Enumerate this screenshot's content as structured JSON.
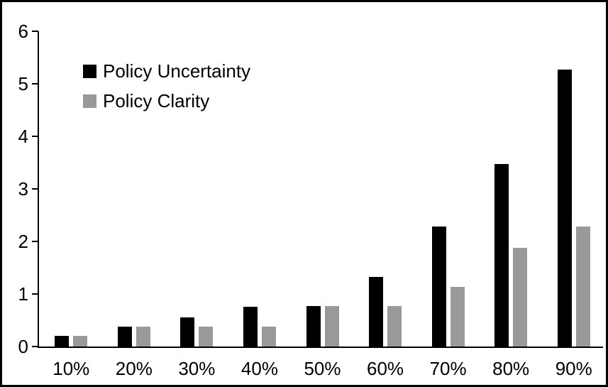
{
  "chart_data": {
    "type": "bar",
    "categories": [
      "10%",
      "20%",
      "30%",
      "40%",
      "50%",
      "60%",
      "70%",
      "80%",
      "90%"
    ],
    "series": [
      {
        "name": "Policy Uncertainty",
        "color": "#000000",
        "values": [
          0.2,
          0.38,
          0.55,
          0.75,
          0.77,
          1.32,
          2.28,
          3.47,
          5.27
        ]
      },
      {
        "name": "Policy Clarity",
        "color": "#999999",
        "values": [
          0.2,
          0.38,
          0.38,
          0.38,
          0.77,
          0.77,
          1.14,
          1.88,
          2.28
        ]
      }
    ],
    "title": "",
    "xlabel": "",
    "ylabel": "",
    "ylim": [
      0,
      6
    ],
    "yticks": [
      "0",
      "1",
      "2",
      "3",
      "4",
      "5",
      "6"
    ],
    "grid": false,
    "legend_position": "top-left-inside",
    "axis_color": "#000000",
    "background": "#ffffff"
  },
  "legend": {
    "items": [
      {
        "label": "Policy Uncertainty",
        "swatch_color": "#000000"
      },
      {
        "label": "Policy Clarity",
        "swatch_color": "#999999"
      }
    ]
  }
}
